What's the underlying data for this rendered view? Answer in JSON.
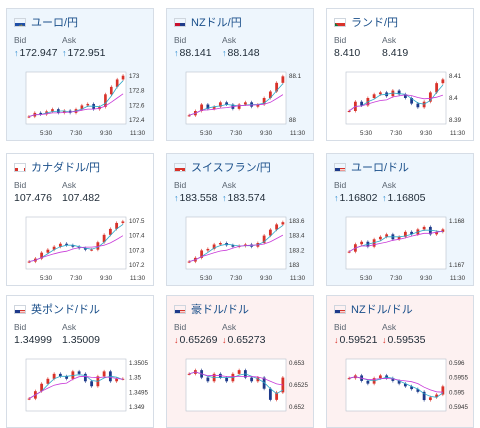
{
  "labels": {
    "bid": "Bid",
    "ask": "Ask"
  },
  "colors": {
    "up_arrow": "#2a8bd0",
    "down_arrow": "#d8322a",
    "candle_up": "#d8322a",
    "candle_down": "#1e3a8a",
    "ma_fast": "#2aa8c8",
    "ma_slow": "#c83ad8"
  },
  "cards": [
    {
      "pair": "ユーロ/円",
      "flag": "eu-flag-icon",
      "state": "up",
      "bid": "172.947",
      "ask": "172.951",
      "bid_dir": "up",
      "ask_dir": "up",
      "x_ticks": [
        "5:30",
        "7:30",
        "9:30",
        "11:30"
      ],
      "y_ticks": [
        "173",
        "172.8",
        "172.6",
        "172.4"
      ]
    },
    {
      "pair": "NZドル/円",
      "flag": "nz-flag-icon",
      "state": "up",
      "bid": "88.141",
      "ask": "88.148",
      "bid_dir": "up",
      "ask_dir": "up",
      "x_ticks": [
        "5:30",
        "7:30",
        "9:30",
        "11:30"
      ],
      "y_ticks": [
        "88.1",
        "88"
      ]
    },
    {
      "pair": "ランド/円",
      "flag": "za-flag-icon",
      "state": "flat",
      "bid": "8.410",
      "ask": "8.419",
      "bid_dir": "",
      "ask_dir": "",
      "x_ticks": [
        "5:30",
        "7:30",
        "9:30",
        "11:30"
      ],
      "y_ticks": [
        "8.41",
        "8.4",
        "8.39"
      ]
    },
    {
      "pair": "カナダドル/円",
      "flag": "ca-flag-icon",
      "state": "flat",
      "bid": "107.476",
      "ask": "107.482",
      "bid_dir": "",
      "ask_dir": "",
      "x_ticks": [
        "5:30",
        "7:30",
        "9:30",
        "11:30"
      ],
      "y_ticks": [
        "107.5",
        "107.4",
        "107.3",
        "107.2"
      ]
    },
    {
      "pair": "スイスフラン/円",
      "flag": "ch-flag-icon",
      "state": "up",
      "bid": "183.558",
      "ask": "183.574",
      "bid_dir": "up",
      "ask_dir": "up",
      "x_ticks": [
        "5:30",
        "7:30",
        "9:30",
        "11:30"
      ],
      "y_ticks": [
        "183.6",
        "183.4",
        "183.2",
        "183"
      ]
    },
    {
      "pair": "ユーロ/ドル",
      "flag": "eu-us-flag-icon",
      "state": "up",
      "bid": "1.16802",
      "ask": "1.16805",
      "bid_dir": "up",
      "ask_dir": "up",
      "x_ticks": [
        "5:30",
        "7:30",
        "9:30",
        "11:30"
      ],
      "y_ticks": [
        "1.168",
        "1.167"
      ]
    },
    {
      "pair": "英ポンド/ドル",
      "flag": "gb-us-flag-icon",
      "state": "flat",
      "bid": "1.34999",
      "ask": "1.35009",
      "bid_dir": "",
      "ask_dir": "",
      "x_ticks": [],
      "y_ticks": [
        "1.3505",
        "1.35",
        "1.3495",
        "1.349"
      ]
    },
    {
      "pair": "豪ドル/ドル",
      "flag": "au-us-flag-icon",
      "state": "down",
      "bid": "0.65269",
      "ask": "0.65273",
      "bid_dir": "down",
      "ask_dir": "down",
      "x_ticks": [],
      "y_ticks": [
        "0.653",
        "0.6525",
        "0.652"
      ]
    },
    {
      "pair": "NZドル/ドル",
      "flag": "nz-us-flag-icon",
      "state": "down",
      "bid": "0.59521",
      "ask": "0.59535",
      "bid_dir": "down",
      "ask_dir": "down",
      "x_ticks": [],
      "y_ticks": [
        "0.596",
        "0.5955",
        "0.595",
        "0.5945"
      ]
    }
  ],
  "chart_data": [
    {
      "type": "line",
      "title": "ユーロ/円",
      "series": [
        {
          "values": [
            172.45,
            172.5,
            172.48,
            172.52,
            172.55,
            172.5,
            172.53,
            172.5,
            172.55,
            172.6,
            172.62,
            172.55,
            172.58,
            172.75,
            172.85,
            172.95,
            173.0
          ]
        }
      ],
      "ylim": [
        172.35,
        173.05
      ]
    },
    {
      "type": "line",
      "title": "NZドル/円",
      "series": [
        {
          "values": [
            87.97,
            87.99,
            88.02,
            88.0,
            88.01,
            88.03,
            88.02,
            88.0,
            88.02,
            88.03,
            88.01,
            88.02,
            88.05,
            88.08,
            88.12,
            88.15
          ]
        }
      ],
      "ylim": [
        87.93,
        88.17
      ]
    },
    {
      "type": "line",
      "title": "ランド/円",
      "series": [
        {
          "values": [
            8.395,
            8.4,
            8.398,
            8.402,
            8.404,
            8.405,
            8.403,
            8.406,
            8.404,
            8.402,
            8.399,
            8.397,
            8.4,
            8.405,
            8.41,
            8.412
          ]
        }
      ],
      "ylim": [
        8.388,
        8.416
      ]
    },
    {
      "type": "line",
      "title": "カナダドル/円",
      "series": [
        {
          "values": [
            107.22,
            107.24,
            107.28,
            107.3,
            107.32,
            107.34,
            107.33,
            107.32,
            107.31,
            107.3,
            107.3,
            107.35,
            107.4,
            107.44,
            107.48,
            107.49
          ]
        }
      ],
      "ylim": [
        107.17,
        107.52
      ]
    },
    {
      "type": "line",
      "title": "スイスフラン/円",
      "series": [
        {
          "values": [
            183.05,
            183.1,
            183.2,
            183.22,
            183.28,
            183.3,
            183.27,
            183.25,
            183.26,
            183.28,
            183.25,
            183.3,
            183.4,
            183.48,
            183.55,
            183.58
          ]
        }
      ],
      "ylim": [
        182.95,
        183.65
      ]
    },
    {
      "type": "line",
      "title": "ユーロ/ドル",
      "series": [
        {
          "values": [
            1.1672,
            1.1675,
            1.1676,
            1.1674,
            1.1677,
            1.1678,
            1.1679,
            1.1677,
            1.1678,
            1.168,
            1.1679,
            1.1681,
            1.1682,
            1.1679,
            1.168,
            1.1681
          ]
        }
      ],
      "ylim": [
        1.1665,
        1.1686
      ]
    },
    {
      "type": "line",
      "title": "英ポンド/ドル",
      "series": [
        {
          "values": [
            1.3492,
            1.3495,
            1.3498,
            1.35,
            1.3502,
            1.3501,
            1.35,
            1.3503,
            1.3502,
            1.3499,
            1.3497,
            1.3501,
            1.3503,
            1.3499,
            1.35,
            1.35
          ]
        }
      ],
      "ylim": [
        1.3487,
        1.3508
      ]
    },
    {
      "type": "line",
      "title": "豪ドル/ドル",
      "series": [
        {
          "values": [
            0.6528,
            0.6529,
            0.6527,
            0.6526,
            0.6528,
            0.6527,
            0.6526,
            0.6528,
            0.6529,
            0.6527,
            0.6526,
            0.6527,
            0.6524,
            0.6521,
            0.6523,
            0.6527
          ]
        }
      ],
      "ylim": [
        0.6518,
        0.6532
      ]
    },
    {
      "type": "line",
      "title": "NZドル/ドル",
      "series": [
        {
          "values": [
            0.5955,
            0.5956,
            0.5954,
            0.5953,
            0.5955,
            0.5956,
            0.5955,
            0.5954,
            0.5953,
            0.5952,
            0.5951,
            0.595,
            0.5947,
            0.5948,
            0.5949,
            0.5952
          ]
        }
      ],
      "ylim": [
        0.5943,
        0.5962
      ]
    }
  ]
}
